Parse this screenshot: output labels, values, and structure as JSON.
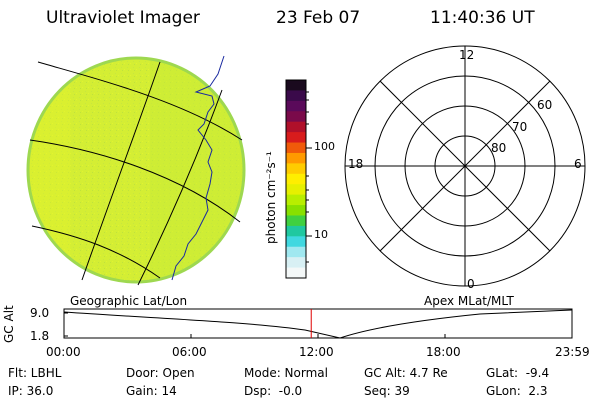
{
  "header": {
    "instrument": "Ultraviolet Imager",
    "date": "23 Feb 07",
    "time": "11:40:36 UT"
  },
  "colorbar": {
    "unit_label": "photon cm⁻²s⁻¹",
    "ticks": [
      "100",
      "10"
    ],
    "colors": [
      "#1a0a1e",
      "#3a0a4a",
      "#5a0a5a",
      "#7a0a4a",
      "#b0102a",
      "#d81c1c",
      "#f05a0a",
      "#ff9a00",
      "#ffcc00",
      "#ffee00",
      "#e6f000",
      "#b8ee00",
      "#88e000",
      "#40d040",
      "#20c8a0",
      "#40d8e0",
      "#a0e8f0",
      "#d8f0f4",
      "#f4f8f8"
    ]
  },
  "globe_panel": {
    "caption": "Geographic Lat/Lon"
  },
  "polar_panel": {
    "caption": "Apex MLat/MLT",
    "mlt_labels": [
      "12",
      "18",
      "6",
      "0"
    ],
    "mlat_labels": [
      "60",
      "70",
      "80"
    ]
  },
  "altitude_plot": {
    "ylabel": "GC Alt",
    "yticks": [
      "9.0",
      "1.8"
    ],
    "xticks": [
      "00:00",
      "06:00",
      "12:00",
      "18:00",
      "23:59"
    ],
    "current_time_hours": 11.68
  },
  "status": {
    "filter": "Flt: LBHL",
    "door": "Door: Open",
    "mode": "Mode: Normal",
    "gc_alt": "GC Alt: 4.7 Re",
    "glat": "GLat:  -9.4",
    "ip": "IP: 36.0",
    "gain": "Gain: 14",
    "dsp": "Dsp:  -0.0",
    "seq": "Seq: 39",
    "glon": "GLon:  2.3"
  },
  "colors": {
    "globe_fill": "#d8f030",
    "current_time_marker": "#e00000"
  }
}
